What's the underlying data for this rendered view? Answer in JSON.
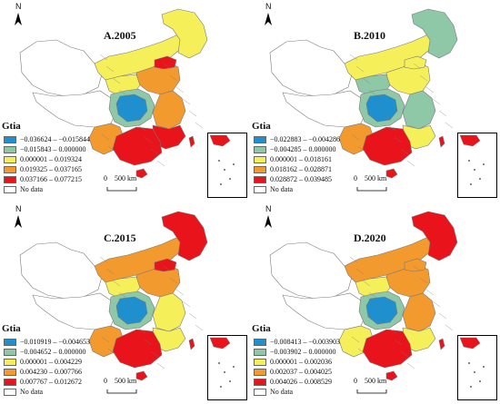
{
  "colors": {
    "blue": "#1E8FCF",
    "green": "#8FC8A6",
    "yellow": "#F5F05A",
    "orange": "#F29A2E",
    "red": "#E8131B",
    "nodata": "#FFFFFF",
    "border": "#7a7a7a"
  },
  "north_label": "N",
  "legend_title": "Gtia",
  "scale_label": "0    500 km",
  "panels": [
    {
      "title": "A.2005",
      "legend": [
        {
          "label": "−0.036624 – −0.015844",
          "color": "#1E8FCF"
        },
        {
          "label": "−0.015843 – 0.000000",
          "color": "#8FC8A6"
        },
        {
          "label": "0.000001 – 0.019324",
          "color": "#F5F05A"
        },
        {
          "label": "0.019325 – 0.037165",
          "color": "#F29A2E"
        },
        {
          "label": "0.037166 – 0.077215",
          "color": "#E8131B"
        },
        {
          "label": "No data",
          "color": "#FFFFFF"
        }
      ],
      "regions": {
        "northeast": "yellow",
        "north": "orange",
        "north2": "red",
        "east": "orange",
        "southeast": "red",
        "south": "red",
        "southwest": "orange",
        "center": "blue",
        "centerring": "green",
        "west": "nodata",
        "xinjiang": "nodata",
        "inner": "yellow",
        "central": "yellow",
        "hainan": "red",
        "taiwan": "red"
      }
    },
    {
      "title": "B.2010",
      "legend": [
        {
          "label": "−0.022883 – −0.004286",
          "color": "#1E8FCF"
        },
        {
          "label": "−0.004285 – 0.000000",
          "color": "#8FC8A6"
        },
        {
          "label": "0.000001 – 0.018161",
          "color": "#F5F05A"
        },
        {
          "label": "0.018162 – 0.028871",
          "color": "#F29A2E"
        },
        {
          "label": "0.028872 – 0.039485",
          "color": "#E8131B"
        },
        {
          "label": "No data",
          "color": "#FFFFFF"
        }
      ],
      "regions": {
        "northeast": "green",
        "north": "yellow",
        "north2": "yellow",
        "east": "green",
        "southeast": "yellow",
        "south": "red",
        "southwest": "orange",
        "center": "blue",
        "centerring": "green",
        "west": "nodata",
        "xinjiang": "nodata",
        "inner": "yellow",
        "central": "green",
        "hainan": "red",
        "taiwan": "red"
      }
    },
    {
      "title": "C.2015",
      "legend": [
        {
          "label": "−0.010919 – −0.004653",
          "color": "#1E8FCF"
        },
        {
          "label": "−0.004652 – 0.000000",
          "color": "#8FC8A6"
        },
        {
          "label": "0.000001 – 0.004229",
          "color": "#F5F05A"
        },
        {
          "label": "0.004230 – 0.007766",
          "color": "#F29A2E"
        },
        {
          "label": "0.007767 – 0.012672",
          "color": "#E8131B"
        },
        {
          "label": "No data",
          "color": "#FFFFFF"
        }
      ],
      "regions": {
        "northeast": "red",
        "north": "orange",
        "north2": "red",
        "east": "yellow",
        "southeast": "yellow",
        "south": "red",
        "southwest": "orange",
        "center": "blue",
        "centerring": "green",
        "west": "nodata",
        "xinjiang": "nodata",
        "inner": "orange",
        "central": "yellow",
        "hainan": "red",
        "taiwan": "red"
      }
    },
    {
      "title": "D.2020",
      "legend": [
        {
          "label": "−0.008413 – −0.003903",
          "color": "#1E8FCF"
        },
        {
          "label": "−0.003902 – 0.000000",
          "color": "#8FC8A6"
        },
        {
          "label": "0.000001 – 0.002036",
          "color": "#F5F05A"
        },
        {
          "label": "0.002037 – 0.004025",
          "color": "#F29A2E"
        },
        {
          "label": "0.004026 – 0.008529",
          "color": "#E8131B"
        },
        {
          "label": "No data",
          "color": "#FFFFFF"
        }
      ],
      "regions": {
        "northeast": "red",
        "north": "orange",
        "north2": "orange",
        "east": "orange",
        "southeast": "yellow",
        "south": "red",
        "southwest": "yellow",
        "center": "blue",
        "centerring": "green",
        "west": "nodata",
        "xinjiang": "nodata",
        "inner": "orange",
        "central": "yellow",
        "hainan": "red",
        "taiwan": "red"
      }
    }
  ]
}
